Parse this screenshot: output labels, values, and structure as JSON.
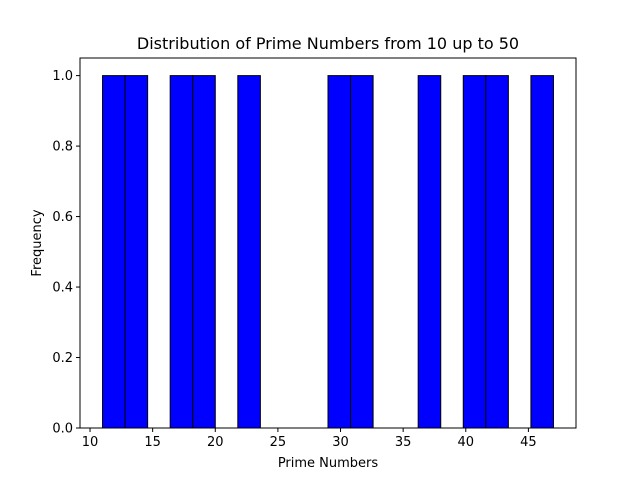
{
  "chart_data": {
    "type": "bar",
    "title": "Distribution of Prime Numbers from 10 up to 50",
    "xlabel": "Prime Numbers",
    "ylabel": "Frequency",
    "xlim": [
      9.2,
      48.8
    ],
    "ylim": [
      0,
      1.05
    ],
    "x_ticks": [
      10,
      15,
      20,
      25,
      30,
      35,
      40,
      45
    ],
    "y_ticks": [
      0.0,
      0.2,
      0.4,
      0.6,
      0.8,
      1.0
    ],
    "bins": [
      {
        "start": 11.0,
        "end": 12.8,
        "count": 1
      },
      {
        "start": 12.8,
        "end": 14.6,
        "count": 1
      },
      {
        "start": 16.4,
        "end": 18.2,
        "count": 1
      },
      {
        "start": 18.2,
        "end": 20.0,
        "count": 1
      },
      {
        "start": 21.8,
        "end": 23.6,
        "count": 1
      },
      {
        "start": 29.0,
        "end": 30.8,
        "count": 1
      },
      {
        "start": 30.8,
        "end": 32.6,
        "count": 1
      },
      {
        "start": 36.2,
        "end": 38.0,
        "count": 1
      },
      {
        "start": 39.8,
        "end": 41.6,
        "count": 1
      },
      {
        "start": 41.6,
        "end": 43.4,
        "count": 1
      },
      {
        "start": 45.2,
        "end": 47.0,
        "count": 1
      }
    ],
    "bar_color": "#0000ff",
    "edge_color": "#000000",
    "grid": false,
    "legend": "none"
  }
}
